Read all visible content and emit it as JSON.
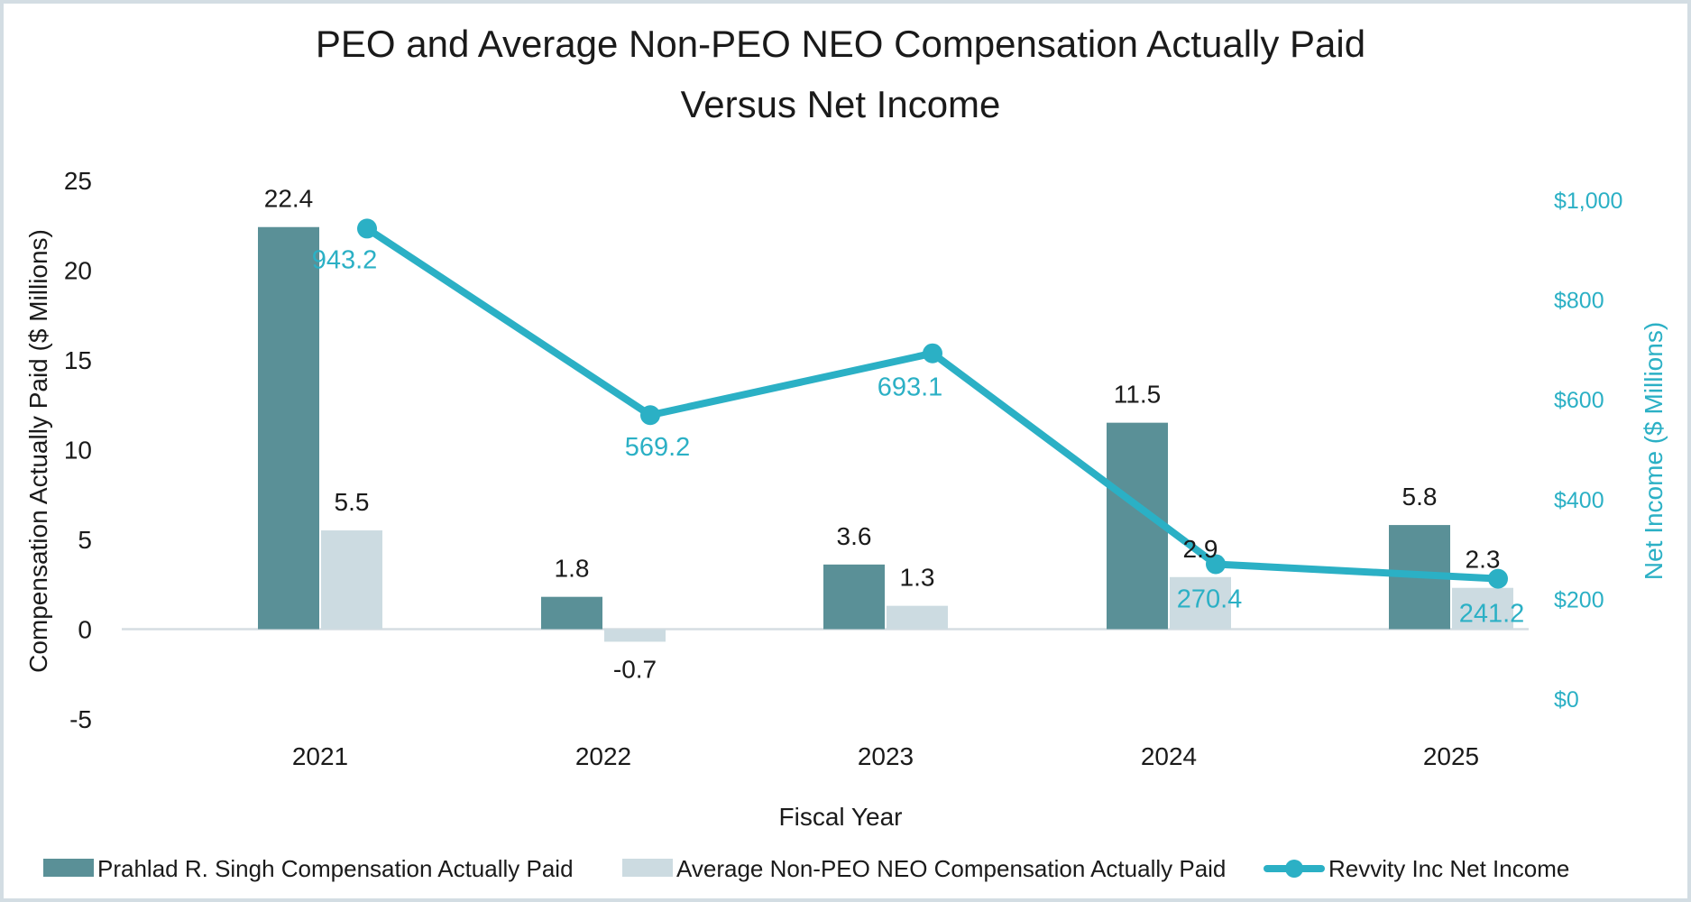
{
  "chart_data": {
    "type": "bar",
    "title_lines": [
      "PEO and Average Non-PEO NEO Compensation Actually Paid",
      "Versus Net Income"
    ],
    "xlabel": "Fiscal Year",
    "ylabel": "Compensation Actually Paid ($ Millions)",
    "ylabel_right": "Net Income ($ Millions)",
    "categories": [
      "2021",
      "2022",
      "2023",
      "2024",
      "2025"
    ],
    "ylim": [
      -5,
      25
    ],
    "yticks": [
      "-5",
      "0",
      "5",
      "10",
      "15",
      "20",
      "25"
    ],
    "ylim_right": [
      0,
      1000
    ],
    "yticks_right": [
      "$0",
      "$200",
      "$400",
      "$600",
      "$800",
      "$1,000"
    ],
    "series": [
      {
        "name": "Prahlad R. Singh Compensation Actually Paid",
        "type": "bar",
        "color": "#5a9097",
        "values": [
          22.4,
          1.8,
          3.6,
          11.5,
          5.8
        ],
        "labels": [
          "22.4",
          "1.8",
          "3.6",
          "11.5",
          "5.8"
        ]
      },
      {
        "name": "Average Non-PEO NEO Compensation Actually Paid",
        "type": "bar",
        "color": "#ccdbe1",
        "values": [
          5.5,
          -0.7,
          1.3,
          2.9,
          2.3
        ],
        "labels": [
          "5.5",
          "-0.7",
          "1.3",
          "2.9",
          "2.3"
        ]
      },
      {
        "name": "Revvity Inc Net Income",
        "type": "line",
        "axis": "right",
        "color": "#2bb0c5",
        "values": [
          943.2,
          569.2,
          693.1,
          270.4,
          241.2
        ],
        "labels": [
          "943.2",
          "569.2",
          "693.1",
          "270.4",
          "241.2"
        ]
      }
    ],
    "grid": false,
    "legend_position": "bottom"
  }
}
